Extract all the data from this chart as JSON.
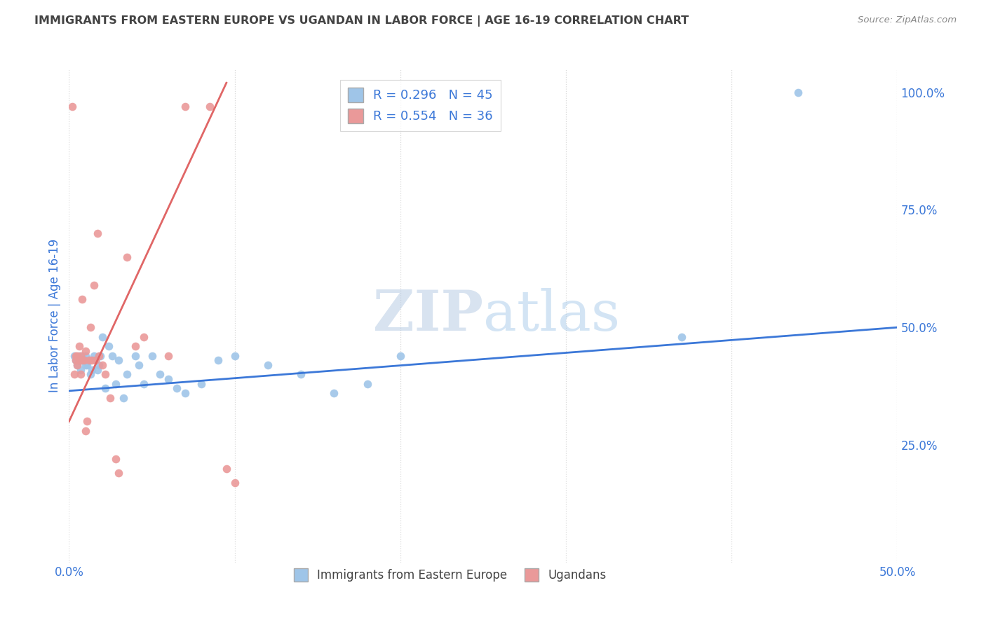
{
  "title": "IMMIGRANTS FROM EASTERN EUROPE VS UGANDAN IN LABOR FORCE | AGE 16-19 CORRELATION CHART",
  "source": "Source: ZipAtlas.com",
  "ylabel": "In Labor Force | Age 16-19",
  "xlim": [
    0.0,
    0.5
  ],
  "ylim": [
    0.0,
    1.05
  ],
  "watermark_zip": "ZIP",
  "watermark_atlas": "atlas",
  "blue_color": "#9fc5e8",
  "pink_color": "#ea9999",
  "blue_line_color": "#3c78d8",
  "pink_line_color": "#e06666",
  "legend_R_blue": "0.296",
  "legend_N_blue": "45",
  "legend_R_pink": "0.554",
  "legend_N_pink": "36",
  "grid_color": "#d9d9d9",
  "title_color": "#434343",
  "axis_label_color": "#3c78d8",
  "blue_scatter_x": [
    0.003,
    0.004,
    0.005,
    0.006,
    0.007,
    0.007,
    0.008,
    0.009,
    0.01,
    0.01,
    0.011,
    0.012,
    0.013,
    0.014,
    0.015,
    0.016,
    0.017,
    0.018,
    0.019,
    0.02,
    0.022,
    0.024,
    0.026,
    0.028,
    0.03,
    0.033,
    0.035,
    0.04,
    0.042,
    0.045,
    0.05,
    0.055,
    0.06,
    0.065,
    0.07,
    0.08,
    0.09,
    0.1,
    0.12,
    0.14,
    0.16,
    0.18,
    0.2,
    0.37,
    0.44
  ],
  "blue_scatter_y": [
    0.44,
    0.43,
    0.42,
    0.44,
    0.41,
    0.43,
    0.44,
    0.43,
    0.42,
    0.44,
    0.42,
    0.43,
    0.4,
    0.41,
    0.44,
    0.43,
    0.41,
    0.42,
    0.44,
    0.48,
    0.37,
    0.46,
    0.44,
    0.38,
    0.43,
    0.35,
    0.4,
    0.44,
    0.42,
    0.38,
    0.44,
    0.4,
    0.39,
    0.37,
    0.36,
    0.38,
    0.43,
    0.44,
    0.42,
    0.4,
    0.36,
    0.38,
    0.44,
    0.48,
    1.0
  ],
  "pink_scatter_x": [
    0.002,
    0.003,
    0.004,
    0.004,
    0.005,
    0.005,
    0.006,
    0.006,
    0.007,
    0.007,
    0.008,
    0.008,
    0.009,
    0.01,
    0.01,
    0.011,
    0.012,
    0.013,
    0.014,
    0.015,
    0.016,
    0.017,
    0.018,
    0.02,
    0.022,
    0.025,
    0.028,
    0.03,
    0.035,
    0.04,
    0.045,
    0.06,
    0.07,
    0.085,
    0.095,
    0.1
  ],
  "pink_scatter_y": [
    0.97,
    0.4,
    0.43,
    0.44,
    0.42,
    0.44,
    0.43,
    0.46,
    0.44,
    0.4,
    0.56,
    0.43,
    0.43,
    0.45,
    0.28,
    0.3,
    0.43,
    0.5,
    0.43,
    0.59,
    0.43,
    0.7,
    0.44,
    0.42,
    0.4,
    0.35,
    0.22,
    0.19,
    0.65,
    0.46,
    0.48,
    0.44,
    0.97,
    0.97,
    0.2,
    0.17
  ],
  "blue_line_x": [
    0.0,
    0.5
  ],
  "blue_line_y": [
    0.365,
    0.5
  ],
  "pink_line_x": [
    0.0,
    0.095
  ],
  "pink_line_y": [
    0.3,
    1.02
  ]
}
